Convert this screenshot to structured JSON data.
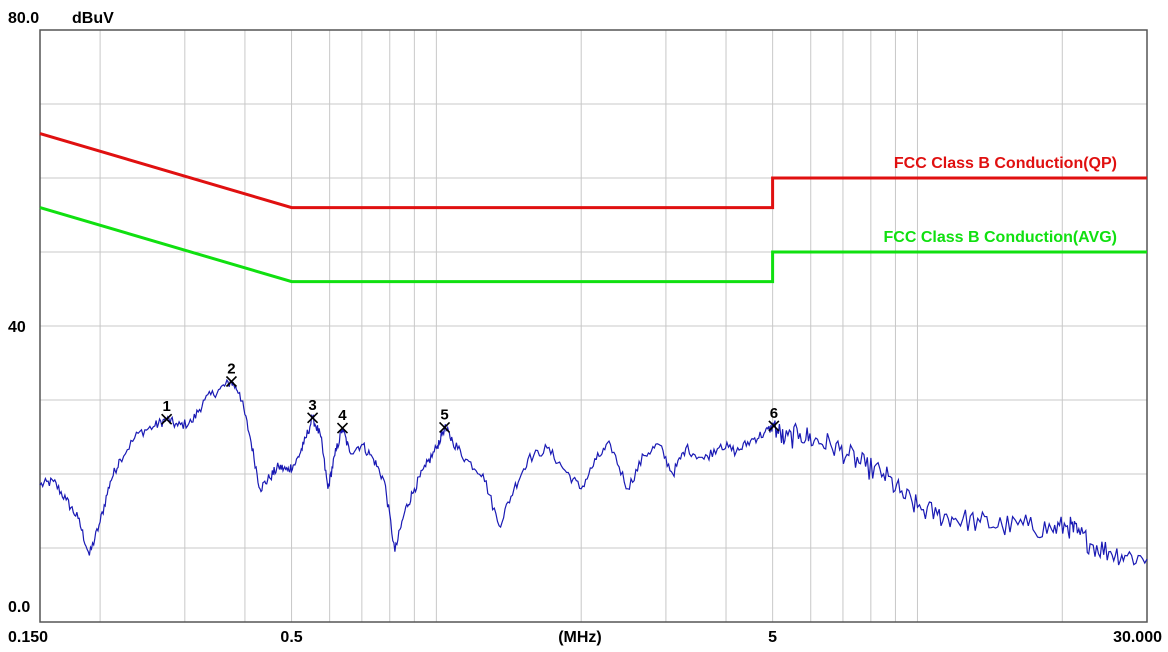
{
  "chart_data": {
    "type": "line",
    "x_scale": "log",
    "xlim": [
      0.15,
      30.0
    ],
    "ylim": [
      0.0,
      80.0
    ],
    "y_unit": "dBuV",
    "x_unit": "(MHz)",
    "grid": true,
    "x_ticks": [
      {
        "value": 0.15,
        "label": "0.150"
      },
      {
        "value": 0.5,
        "label": "0.5"
      },
      {
        "value": 5,
        "label": "5"
      },
      {
        "value": 30,
        "label": "30.000"
      }
    ],
    "y_ticks": [
      {
        "value": 80,
        "label": "80.0"
      },
      {
        "value": 40,
        "label": "40"
      },
      {
        "value": 0,
        "label": "0.0"
      }
    ],
    "limits": [
      {
        "name": "FCC Class B Conduction(QP)",
        "color": "#e01010",
        "points": [
          [
            0.15,
            66.0
          ],
          [
            0.5,
            56.0
          ],
          [
            5.0,
            56.0
          ],
          [
            5.0,
            60.0
          ],
          [
            30.0,
            60.0
          ]
        ]
      },
      {
        "name": "FCC Class B Conduction(AVG)",
        "color": "#10e010",
        "points": [
          [
            0.15,
            56.0
          ],
          [
            0.5,
            46.0
          ],
          [
            5.0,
            46.0
          ],
          [
            5.0,
            50.0
          ],
          [
            30.0,
            50.0
          ]
        ]
      }
    ],
    "series": [
      {
        "color": "#1a1ab4",
        "points": [
          [
            0.15,
            18.5
          ],
          [
            0.16,
            19.0
          ],
          [
            0.17,
            16.5
          ],
          [
            0.18,
            14.0
          ],
          [
            0.19,
            9.0
          ],
          [
            0.2,
            13.5
          ],
          [
            0.21,
            19.0
          ],
          [
            0.22,
            22.0
          ],
          [
            0.24,
            25.5
          ],
          [
            0.26,
            26.5
          ],
          [
            0.275,
            27.4
          ],
          [
            0.29,
            26.5
          ],
          [
            0.31,
            27.0
          ],
          [
            0.33,
            30.0
          ],
          [
            0.355,
            31.5
          ],
          [
            0.375,
            32.5
          ],
          [
            0.39,
            31.0
          ],
          [
            0.41,
            25.0
          ],
          [
            0.43,
            18.0
          ],
          [
            0.45,
            19.5
          ],
          [
            0.47,
            21.0
          ],
          [
            0.49,
            20.5
          ],
          [
            0.51,
            21.5
          ],
          [
            0.53,
            24.0
          ],
          [
            0.553,
            27.6
          ],
          [
            0.575,
            25.0
          ],
          [
            0.595,
            18.0
          ],
          [
            0.615,
            22.5
          ],
          [
            0.638,
            26.2
          ],
          [
            0.66,
            23.0
          ],
          [
            0.7,
            24.0
          ],
          [
            0.74,
            22.0
          ],
          [
            0.78,
            19.0
          ],
          [
            0.82,
            9.5
          ],
          [
            0.86,
            15.0
          ],
          [
            0.9,
            18.0
          ],
          [
            0.95,
            21.0
          ],
          [
            1.0,
            23.5
          ],
          [
            1.04,
            26.3
          ],
          [
            1.08,
            24.5
          ],
          [
            1.15,
            22.0
          ],
          [
            1.25,
            20.0
          ],
          [
            1.35,
            13.0
          ],
          [
            1.45,
            18.0
          ],
          [
            1.55,
            22.0
          ],
          [
            1.7,
            23.5
          ],
          [
            1.85,
            20.5
          ],
          [
            2.0,
            18.0
          ],
          [
            2.15,
            22.0
          ],
          [
            2.3,
            24.0
          ],
          [
            2.5,
            18.0
          ],
          [
            2.7,
            22.5
          ],
          [
            2.9,
            24.0
          ],
          [
            3.1,
            20.0
          ],
          [
            3.3,
            23.5
          ],
          [
            3.6,
            22.0
          ],
          [
            3.9,
            24.0
          ],
          [
            4.2,
            23.0
          ],
          [
            4.5,
            24.5
          ],
          [
            4.8,
            25.5
          ],
          [
            5.03,
            26.5
          ],
          [
            5.3,
            24.5
          ],
          [
            5.7,
            25.5
          ],
          [
            6.1,
            24.5
          ],
          [
            6.6,
            24.0
          ],
          [
            7.2,
            22.5
          ],
          [
            7.8,
            21.0
          ],
          [
            8.5,
            20.0
          ],
          [
            9.2,
            17.5
          ],
          [
            10.0,
            15.5
          ],
          [
            11.0,
            14.5
          ],
          [
            12.0,
            14.0
          ],
          [
            13.5,
            13.5
          ],
          [
            15.0,
            13.0
          ],
          [
            17.0,
            13.0
          ],
          [
            19.0,
            12.5
          ],
          [
            20.5,
            13.0
          ],
          [
            21.5,
            12.0
          ],
          [
            23.0,
            10.5
          ],
          [
            25.0,
            9.5
          ],
          [
            27.0,
            9.0
          ],
          [
            30.0,
            8.5
          ]
        ]
      }
    ],
    "markers": [
      {
        "label": "1",
        "x": 0.275,
        "y": 27.4
      },
      {
        "label": "2",
        "x": 0.375,
        "y": 32.5
      },
      {
        "label": "3",
        "x": 0.553,
        "y": 27.6
      },
      {
        "label": "4",
        "x": 0.638,
        "y": 26.2
      },
      {
        "label": "5",
        "x": 1.04,
        "y": 26.3
      },
      {
        "label": "6",
        "x": 5.03,
        "y": 26.5
      }
    ]
  }
}
